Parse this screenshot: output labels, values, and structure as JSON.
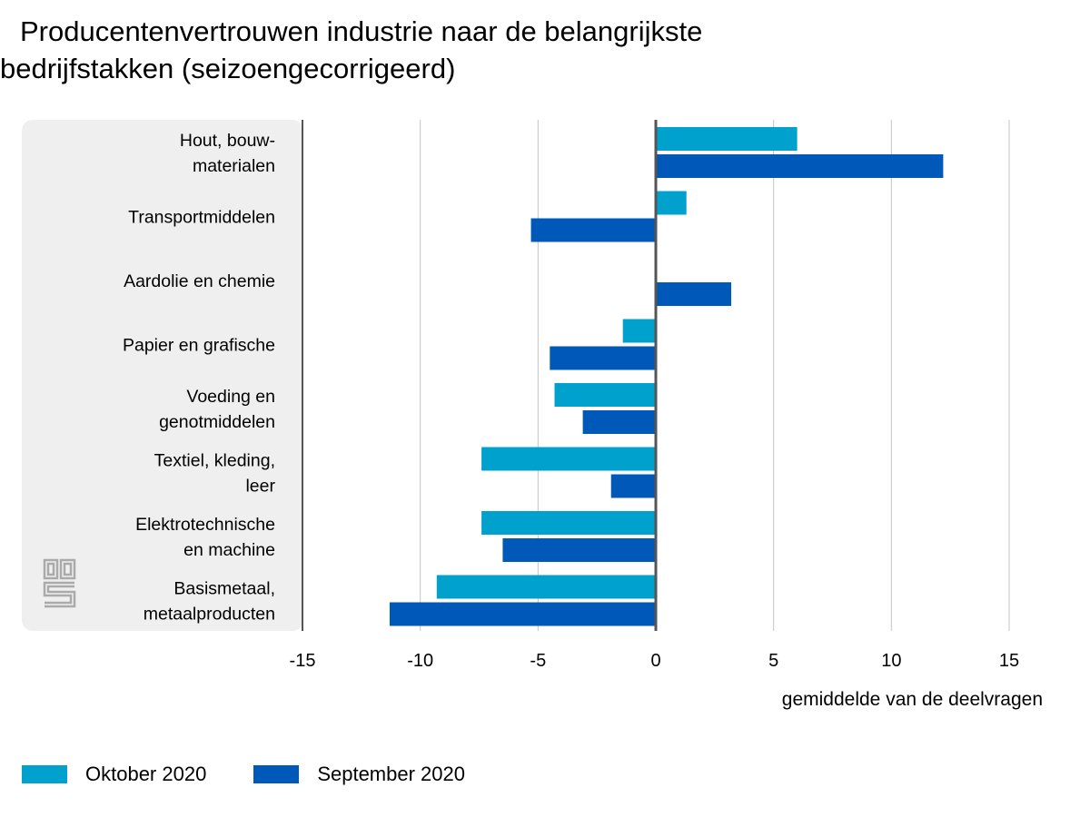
{
  "chart_data": {
    "type": "bar",
    "orientation": "horizontal",
    "title_line1": "Producentenvertrouwen industrie naar de belangrijkste",
    "title_line2": "bedrijfstakken (seizoengecorrigeerd)",
    "xlabel": "gemiddelde van de deelvragen",
    "xlim": [
      -15,
      15
    ],
    "x_ticks": [
      "-15",
      "-10",
      "-5",
      "0",
      "5",
      "10",
      "15"
    ],
    "grid": "vertical",
    "legend_position": "bottom-left",
    "categories": [
      [
        "Hout, bouw-",
        "materialen"
      ],
      [
        "Transportmiddelen"
      ],
      [
        "Aardolie en chemie"
      ],
      [
        "Papier en grafische"
      ],
      [
        "Voeding en",
        "genotmiddelen"
      ],
      [
        "Textiel, kleding,",
        "leer"
      ],
      [
        "Elektrotechnische",
        "en machine"
      ],
      [
        "Basismetaal,",
        "metaalproducten"
      ]
    ],
    "series": [
      {
        "name": "Oktober 2020",
        "color": "#00a1cd",
        "values": [
          6.0,
          1.3,
          0.0,
          -1.4,
          -4.3,
          -7.4,
          -7.4,
          -9.3
        ]
      },
      {
        "name": "September 2020",
        "color": "#0058b8",
        "values": [
          12.2,
          -5.3,
          3.2,
          -4.5,
          -3.1,
          -1.9,
          -6.5,
          -11.3
        ]
      }
    ]
  },
  "logo": {
    "icon": "cbs-logo-icon",
    "text": "cbs"
  },
  "colors": {
    "label_panel": "#efefef",
    "gridline": "#c4c4c4",
    "axis": "#555555",
    "logo": "#aaaaaa"
  }
}
